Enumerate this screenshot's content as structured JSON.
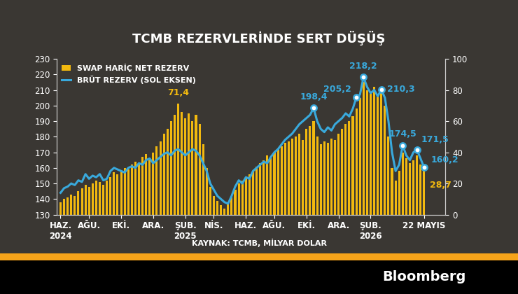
{
  "chart_data": {
    "type": "bar_line",
    "title": "TCMB REZERVLERİNDE SERT DÜŞÜŞ",
    "source": "KAYNAK: TCMB, MİLYAR DOLAR",
    "footer": "Bloomberg",
    "legend": "upper left",
    "grid": false,
    "categories": [
      "HAZ.\n2024",
      null,
      null,
      null,
      null,
      null,
      null,
      null,
      "AĞU.",
      null,
      null,
      null,
      null,
      null,
      null,
      null,
      null,
      "EKİ.",
      null,
      null,
      null,
      null,
      null,
      null,
      null,
      null,
      "ARA.",
      null,
      null,
      null,
      null,
      null,
      null,
      null,
      null,
      "ŞUB.\n2025",
      null,
      null,
      null,
      null,
      null,
      null,
      null,
      "NİS.",
      null,
      null,
      null,
      null,
      null,
      null,
      null,
      null,
      "HAZ.",
      null,
      null,
      null,
      null,
      null,
      null,
      null,
      "AĞU.",
      null,
      null,
      null,
      null,
      null,
      null,
      null,
      null,
      "EKİ.",
      null,
      null,
      null,
      null,
      null,
      null,
      null,
      null,
      "ARA.",
      null,
      null,
      null,
      null,
      null,
      null,
      null,
      null,
      "ŞUB.\n2026",
      null,
      null,
      null,
      null,
      null,
      null,
      null,
      null,
      null,
      null,
      null,
      null,
      null,
      null,
      "22 MAYIS"
    ],
    "ylim": [
      130,
      230
    ],
    "yticks": [
      130,
      140,
      150,
      160,
      170,
      180,
      190,
      200,
      210,
      220,
      230
    ],
    "y2lim": [
      0,
      100
    ],
    "y2ticks": [
      0,
      20,
      40,
      60,
      80,
      100
    ],
    "series": [
      {
        "name": "SWAP HARİÇ NET REZERV",
        "type": "bar",
        "axis": "y2",
        "color": "#f2b90f",
        "values": [
          8,
          10,
          11,
          13,
          12,
          15,
          17,
          19,
          18,
          20,
          22,
          21,
          19,
          22,
          24,
          27,
          26,
          28,
          30,
          29,
          32,
          34,
          33,
          37,
          39,
          36,
          40,
          44,
          47,
          52,
          55,
          60,
          64,
          71.4,
          66,
          62,
          65,
          60,
          64,
          58,
          45,
          30,
          18,
          12,
          9,
          6,
          4,
          7,
          12,
          16,
          20,
          22,
          24,
          26,
          28,
          31,
          33,
          35,
          38,
          37,
          40,
          42,
          44,
          46,
          47,
          49,
          50,
          52,
          48,
          55,
          57,
          60,
          50,
          45,
          47,
          46,
          49,
          48,
          52,
          55,
          58,
          60,
          63,
          68,
          75,
          85,
          80,
          78,
          82,
          76,
          80,
          70,
          50,
          30,
          22,
          28,
          40,
          36,
          33,
          35,
          38,
          32,
          28.7
        ],
        "value_labels": [
          null,
          null,
          null,
          null,
          null,
          null,
          null,
          null,
          null,
          null,
          null,
          null,
          null,
          null,
          null,
          null,
          null,
          null,
          null,
          null,
          null,
          null,
          null,
          null,
          null,
          null,
          null,
          null,
          null,
          null,
          null,
          null,
          null,
          "71,4",
          null,
          null,
          null,
          null,
          null,
          null,
          null,
          null,
          null,
          null,
          null,
          null,
          null,
          null,
          null,
          null,
          null,
          null,
          null,
          null,
          null,
          null,
          null,
          null,
          null,
          null,
          null,
          null,
          null,
          null,
          null,
          null,
          null,
          null,
          null,
          null,
          null,
          null,
          null,
          null,
          null,
          null,
          null,
          null,
          null,
          null,
          null,
          null,
          null,
          null,
          null,
          null,
          null,
          null,
          null,
          null,
          null,
          null,
          null,
          null,
          null,
          null,
          null,
          null,
          null,
          null,
          null,
          null,
          "28,7"
        ]
      },
      {
        "name": "BRÜT REZERV (SOL EKSEN)",
        "type": "line",
        "color": "#39a9dc",
        "marker": "circle",
        "values": [
          144,
          147,
          148,
          150,
          149,
          152,
          151,
          156,
          153,
          155,
          154,
          156,
          152,
          153,
          158,
          160,
          159,
          158,
          157,
          160,
          161,
          160,
          163,
          162,
          165,
          166,
          163,
          165,
          167,
          169,
          170,
          168,
          171,
          172,
          170,
          168,
          170,
          172,
          171,
          168,
          163,
          158,
          150,
          146,
          142,
          140,
          138,
          137,
          142,
          148,
          152,
          150,
          154,
          153,
          158,
          160,
          162,
          164,
          163,
          167,
          170,
          172,
          175,
          178,
          180,
          182,
          185,
          188,
          190,
          192,
          194,
          198.4,
          190,
          185,
          183,
          186,
          184,
          188,
          190,
          192,
          195,
          193,
          198,
          205.2,
          207,
          218.2,
          212,
          208,
          210,
          206,
          210.3,
          205,
          190,
          170,
          158,
          162,
          174.5,
          168,
          165,
          170,
          171.5,
          166,
          160.2
        ],
        "value_labels": [
          null,
          null,
          null,
          null,
          null,
          null,
          null,
          null,
          null,
          null,
          null,
          null,
          null,
          null,
          null,
          null,
          null,
          null,
          null,
          null,
          null,
          null,
          null,
          null,
          null,
          null,
          null,
          null,
          null,
          null,
          null,
          null,
          null,
          null,
          null,
          null,
          null,
          null,
          null,
          null,
          null,
          null,
          null,
          null,
          null,
          null,
          null,
          null,
          null,
          null,
          null,
          null,
          null,
          null,
          null,
          null,
          null,
          null,
          null,
          null,
          null,
          null,
          null,
          null,
          null,
          null,
          null,
          null,
          null,
          null,
          null,
          "198,4",
          null,
          null,
          null,
          null,
          null,
          null,
          null,
          null,
          null,
          null,
          null,
          "205,2",
          null,
          "218,2",
          null,
          null,
          null,
          null,
          "210,3",
          null,
          null,
          null,
          null,
          null,
          "174,5",
          null,
          null,
          null,
          "171,5",
          null,
          "160,2"
        ]
      }
    ]
  }
}
